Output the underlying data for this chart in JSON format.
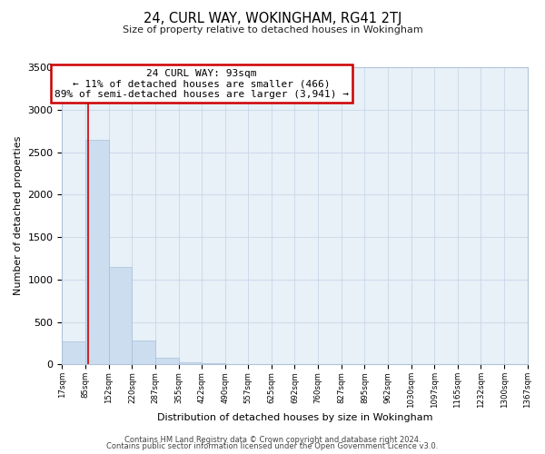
{
  "title": "24, CURL WAY, WOKINGHAM, RG41 2TJ",
  "subtitle": "Size of property relative to detached houses in Wokingham",
  "xlabel": "Distribution of detached houses by size in Wokingham",
  "ylabel": "Number of detached properties",
  "bar_edges": [
    17,
    85,
    152,
    220,
    287,
    355,
    422,
    490,
    557,
    625,
    692,
    760,
    827,
    895,
    962,
    1030,
    1097,
    1165,
    1232,
    1300,
    1367
  ],
  "bar_heights": [
    270,
    2650,
    1150,
    280,
    80,
    30,
    15,
    0,
    0,
    0,
    0,
    0,
    0,
    0,
    0,
    0,
    0,
    0,
    0,
    0
  ],
  "bar_color": "#ccddf0",
  "bar_edge_color": "#a8bfd8",
  "property_line_x": 93,
  "property_line_color": "#cc0000",
  "annotation_title": "24 CURL WAY: 93sqm",
  "annotation_line1": "← 11% of detached houses are smaller (466)",
  "annotation_line2": "89% of semi-detached houses are larger (3,941) →",
  "annotation_box_color": "#ffffff",
  "annotation_box_edge_color": "#cc0000",
  "ylim": [
    0,
    3500
  ],
  "yticks": [
    0,
    500,
    1000,
    1500,
    2000,
    2500,
    3000,
    3500
  ],
  "tick_labels": [
    "17sqm",
    "85sqm",
    "152sqm",
    "220sqm",
    "287sqm",
    "355sqm",
    "422sqm",
    "490sqm",
    "557sqm",
    "625sqm",
    "692sqm",
    "760sqm",
    "827sqm",
    "895sqm",
    "962sqm",
    "1030sqm",
    "1097sqm",
    "1165sqm",
    "1232sqm",
    "1300sqm",
    "1367sqm"
  ],
  "footer1": "Contains HM Land Registry data © Crown copyright and database right 2024.",
  "footer2": "Contains public sector information licensed under the Open Government Licence v3.0.",
  "bg_color": "#ffffff",
  "axes_bg_color": "#e8f0f8",
  "grid_color": "#c8d8e8",
  "fig_width": 6.0,
  "fig_height": 5.0,
  "dpi": 100
}
